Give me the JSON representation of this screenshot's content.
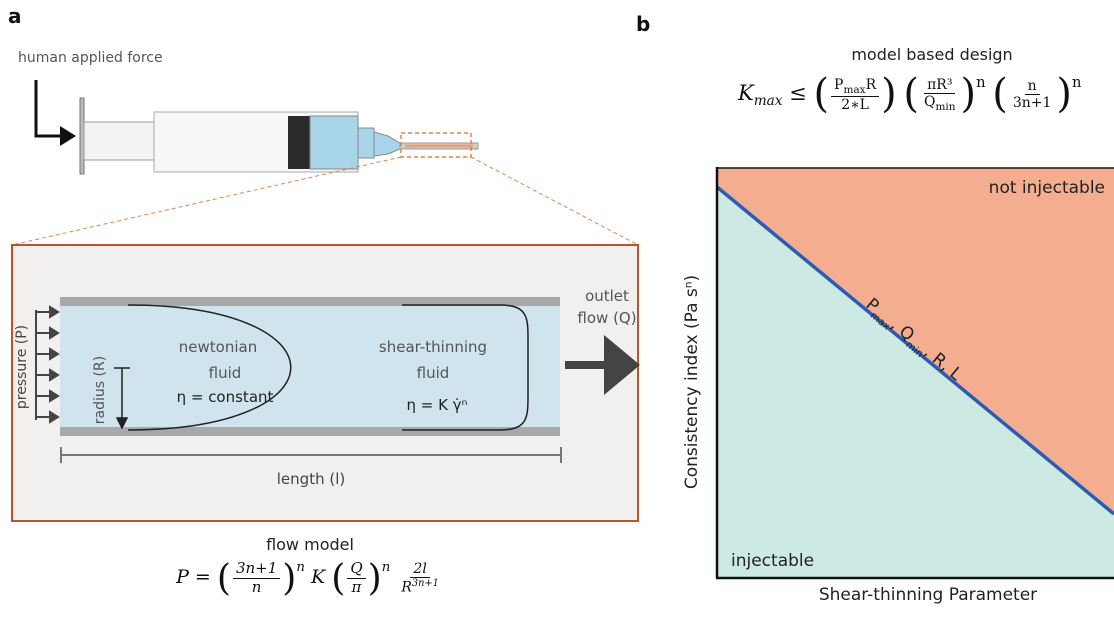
{
  "panel_a": {
    "label": "a",
    "force_label": "human applied force",
    "pressure_label": "pressure (P)",
    "radius_label": "radius (R)",
    "newtonian_line1": "newtonian",
    "newtonian_line2": "fluid",
    "newtonian_eq": "η = constant",
    "shear_line1": "shear-thinning",
    "shear_line2": "fluid",
    "shear_eq": "η = K γ̇ⁿ",
    "outlet_line1": "outlet",
    "outlet_line2": "flow (Q)",
    "length_label": "length (l)",
    "flow_model_title": "flow model",
    "eq": {
      "lhs": "P =",
      "f1_num": "3n+1",
      "f1_den": "n",
      "pow": "n",
      "k": "K",
      "f2_num": "Q",
      "f2_den": "π",
      "f3_num": "2l",
      "f3_den": "R",
      "f3_den_pow": "3n+1"
    }
  },
  "panel_b": {
    "label": "b",
    "title": "model based design",
    "eq": {
      "lhs": "K",
      "lhs_sub": "max",
      "op": "≤",
      "f1_num": "P",
      "f1_num_sub": "max",
      "f1_num_tail": "R",
      "f1_den": "2∗L",
      "f2_num": "πR³",
      "f2_den": "Q",
      "f2_den_sub": "min",
      "pow": "n",
      "f3_num": "n",
      "f3_den": "3n+1",
      "pow2": "n"
    },
    "region_top": "not injectable",
    "region_bottom": "injectable",
    "line_label": {
      "p": "P",
      "p_sub": "max",
      "q": "Q",
      "q_sub": "min",
      "rest": "R, L"
    },
    "xlabel": "Shear-thinning Parameter",
    "ylabel": "Consistency index (Pa sⁿ)",
    "colors": {
      "not_injectable": "#f4ae8f",
      "injectable": "#cde9e3",
      "line": "#2e5ab1"
    }
  }
}
